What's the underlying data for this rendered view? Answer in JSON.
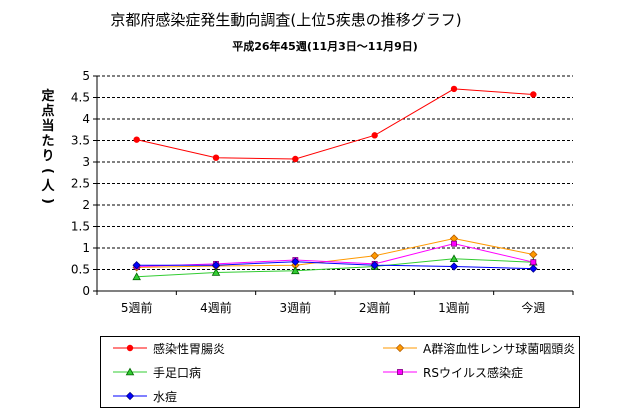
{
  "chart_data": {
    "type": "line",
    "title": "京都府感染症発生動向調査(上位5疾患の推移グラフ)",
    "subtitle": "平成26年45週(11月3日〜11月9日)",
    "ylabel": "定点当たり(人)",
    "xlabel": "",
    "categories": [
      "5週前",
      "4週前",
      "3週前",
      "2週前",
      "1週前",
      "今週"
    ],
    "ylim": [
      0,
      5
    ],
    "yticks": [
      "0",
      "0.5",
      "1",
      "1.5",
      "2",
      "2.5",
      "3",
      "3.5",
      "4",
      "4.5",
      "5"
    ],
    "grid": true,
    "legend_position": "bottom",
    "series": [
      {
        "name": "感染性胃腸炎",
        "values": [
          3.52,
          3.1,
          3.07,
          3.62,
          4.7,
          4.57
        ],
        "color": "#ff0000",
        "marker": "circle"
      },
      {
        "name": "A群溶血性レンサ球菌咽頭炎",
        "values": [
          0.55,
          0.58,
          0.6,
          0.82,
          1.22,
          0.85
        ],
        "color": "#ff9900",
        "marker": "diamond"
      },
      {
        "name": "手足口病",
        "values": [
          0.33,
          0.43,
          0.47,
          0.57,
          0.75,
          0.67
        ],
        "color": "#33cc33",
        "marker": "triangle"
      },
      {
        "name": "RSウイルス感染症",
        "values": [
          0.57,
          0.63,
          0.72,
          0.63,
          1.1,
          0.67
        ],
        "color": "#ff00ff",
        "marker": "square"
      },
      {
        "name": "水痘",
        "values": [
          0.6,
          0.6,
          0.68,
          0.6,
          0.57,
          0.52
        ],
        "color": "#0000ff",
        "marker": "diamond"
      }
    ]
  }
}
